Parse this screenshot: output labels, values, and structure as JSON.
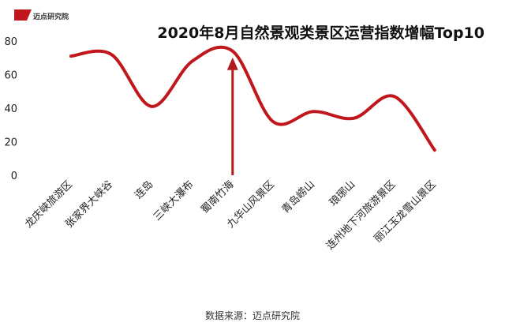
{
  "brand": {
    "name": "迈点研究院"
  },
  "chart_data": {
    "type": "line",
    "title": "2020年8月自然景观类景区运营指数增幅Top10",
    "categories": [
      "龙庆峡旅游区",
      "张家界大峡谷",
      "连岛",
      "三峡大瀑布",
      "蜀南竹海",
      "九华山风景区",
      "青岛崂山",
      "琅琊山",
      "连州地下河旅游景区",
      "丽江玉龙雪山景区"
    ],
    "values": [
      71,
      72,
      41,
      68,
      74,
      32,
      38,
      34,
      47,
      15
    ],
    "ylim": [
      0,
      80
    ],
    "yticks": [
      0,
      20,
      40,
      60,
      80
    ],
    "xlabel": "",
    "ylabel": "",
    "smooth": true,
    "grid": false,
    "line_color": "#c0171c",
    "arrow": {
      "category": "蜀南竹海",
      "color": "#b11a1f"
    },
    "source": "数据来源：迈点研究院"
  }
}
